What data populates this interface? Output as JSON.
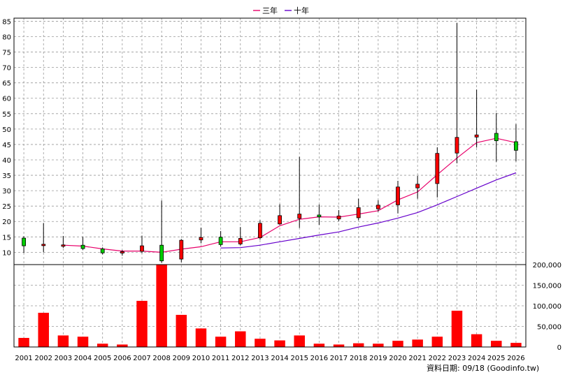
{
  "legend": {
    "ma3_label": "三年",
    "ma10_label": "十年",
    "ma3_color": "#e8006a",
    "ma10_color": "#6600cc"
  },
  "footer": "資料日期: 09/18  (Goodinfo.tw)",
  "colors": {
    "up": "#ff0000",
    "down": "#00cc00",
    "volume": "#ff0000",
    "grid": "#999999"
  },
  "chart_data": {
    "type": "candlestick+bar",
    "years": [
      "2001",
      "2002",
      "2003",
      "2004",
      "2005",
      "2006",
      "2007",
      "2008",
      "2009",
      "2010",
      "2011",
      "2012",
      "2013",
      "2014",
      "2015",
      "2016",
      "2017",
      "2018",
      "2019",
      "2020",
      "2021",
      "2022",
      "2023",
      "2024",
      "2025",
      "2026"
    ],
    "price_axis": {
      "ylim": [
        6,
        86
      ],
      "ticks": [
        10,
        15,
        20,
        25,
        30,
        35,
        40,
        45,
        50,
        55,
        60,
        65,
        70,
        75,
        80,
        85
      ],
      "grid": true
    },
    "volume_axis": {
      "ylim": [
        0,
        200000
      ],
      "ticks": [
        0,
        50000,
        100000,
        150000,
        200000
      ],
      "tick_labels": [
        "0",
        "50,000",
        "100,000",
        "150,000",
        "200,000"
      ]
    },
    "candles": [
      {
        "year": "2001",
        "open": 14.6,
        "high": 15.2,
        "low": 9.8,
        "close": 12.1
      },
      {
        "year": "2002",
        "open": 12.3,
        "high": 19.5,
        "low": 10.0,
        "close": 12.6
      },
      {
        "year": "2003",
        "open": 12.2,
        "high": 15.3,
        "low": 11.4,
        "close": 12.4
      },
      {
        "year": "2004",
        "open": 12.3,
        "high": 15.0,
        "low": 10.8,
        "close": 11.2
      },
      {
        "year": "2005",
        "open": 11.1,
        "high": 11.6,
        "low": 9.3,
        "close": 9.8
      },
      {
        "year": "2006",
        "open": 9.8,
        "high": 10.7,
        "low": 8.9,
        "close": 10.2
      },
      {
        "year": "2007",
        "open": 10.3,
        "high": 15.4,
        "low": 9.7,
        "close": 12.1
      },
      {
        "year": "2008",
        "open": 12.3,
        "high": 26.8,
        "low": 6.6,
        "close": 7.2
      },
      {
        "year": "2009",
        "open": 7.8,
        "high": 14.3,
        "low": 6.8,
        "close": 13.9
      },
      {
        "year": "2010",
        "open": 14.0,
        "high": 18.0,
        "low": 12.9,
        "close": 14.8
      },
      {
        "year": "2011",
        "open": 14.9,
        "high": 16.9,
        "low": 11.8,
        "close": 12.5
      },
      {
        "year": "2012",
        "open": 12.7,
        "high": 18.2,
        "low": 12.3,
        "close": 14.5
      },
      {
        "year": "2013",
        "open": 14.7,
        "high": 20.4,
        "low": 14.1,
        "close": 19.4
      },
      {
        "year": "2014",
        "open": 19.2,
        "high": 25.6,
        "low": 18.9,
        "close": 21.9
      },
      {
        "year": "2015",
        "open": 21.0,
        "high": 41.0,
        "low": 17.9,
        "close": 22.4
      },
      {
        "year": "2016",
        "open": 22.1,
        "high": 25.5,
        "low": 18.9,
        "close": 21.5
      },
      {
        "year": "2017",
        "open": 20.8,
        "high": 23.7,
        "low": 20.1,
        "close": 21.8
      },
      {
        "year": "2018",
        "open": 21.2,
        "high": 27.4,
        "low": 20.4,
        "close": 24.5
      },
      {
        "year": "2019",
        "open": 24.1,
        "high": 26.9,
        "low": 23.2,
        "close": 25.3
      },
      {
        "year": "2020",
        "open": 25.4,
        "high": 33.2,
        "low": 22.6,
        "close": 31.2
      },
      {
        "year": "2021",
        "open": 30.9,
        "high": 34.8,
        "low": 27.4,
        "close": 32.1
      },
      {
        "year": "2022",
        "open": 32.3,
        "high": 44.1,
        "low": 27.8,
        "close": 42.1
      },
      {
        "year": "2023",
        "open": 42.2,
        "high": 84.4,
        "low": 38.9,
        "close": 47.3
      },
      {
        "year": "2024",
        "open": 47.4,
        "high": 62.8,
        "low": 44.0,
        "close": 48.1
      },
      {
        "year": "2025",
        "open": 48.6,
        "high": 55.2,
        "low": 39.4,
        "close": 46.2
      },
      {
        "year": "2026",
        "open": 45.9,
        "high": 51.6,
        "low": 39.5,
        "close": 43.1
      }
    ],
    "ma3": [
      null,
      null,
      12.3,
      12.0,
      11.1,
      10.4,
      10.4,
      10.0,
      11.0,
      11.8,
      13.4,
      13.4,
      14.8,
      18.6,
      20.7,
      21.5,
      21.4,
      22.4,
      23.5,
      27.0,
      29.6,
      35.2,
      40.6,
      45.6,
      47.0,
      45.6
    ],
    "ma10": [
      null,
      null,
      null,
      null,
      null,
      null,
      null,
      null,
      null,
      null,
      11.4,
      11.5,
      12.3,
      13.4,
      14.5,
      15.6,
      16.6,
      18.2,
      19.5,
      21.1,
      22.9,
      25.4,
      28.1,
      30.8,
      33.5,
      35.8
    ],
    "volume": [
      22000,
      83000,
      28000,
      25000,
      8000,
      6000,
      112000,
      200000,
      78000,
      45000,
      25000,
      38000,
      20000,
      16000,
      28000,
      8000,
      6000,
      9000,
      8000,
      15000,
      18000,
      25000,
      88000,
      31000,
      15000,
      10000
    ]
  }
}
